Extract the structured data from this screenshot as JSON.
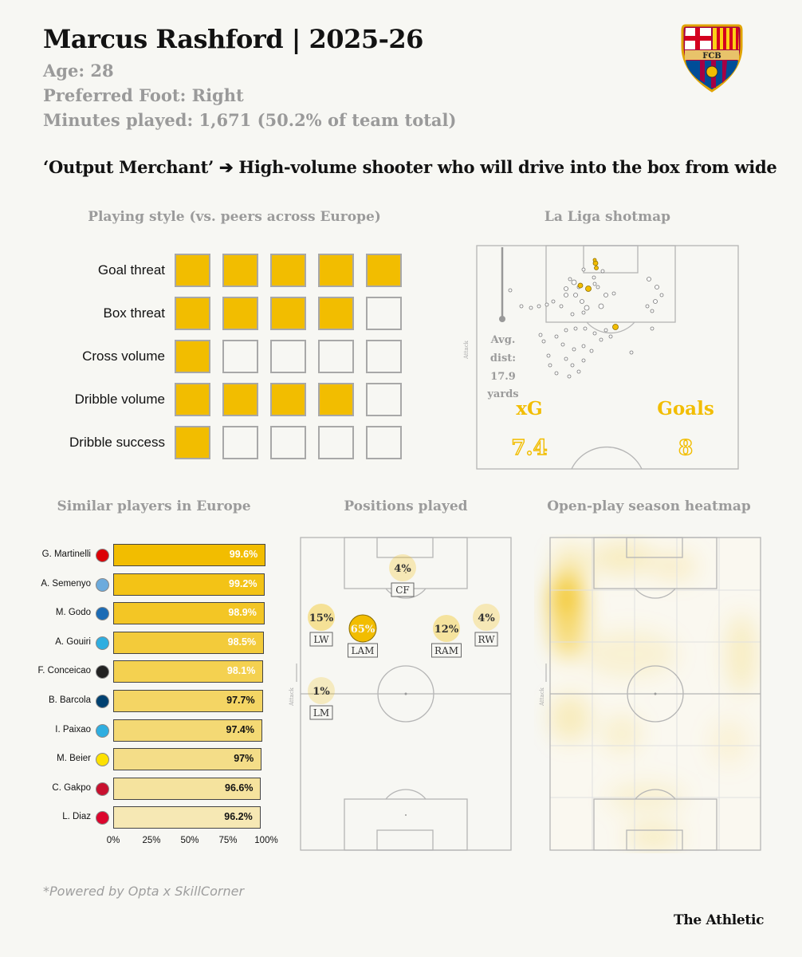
{
  "header": {
    "title": "Marcus Rashford | 2025-26",
    "age": "Age: 28",
    "foot": "Preferred Foot: Right",
    "minutes": "Minutes played: 1,671 (50.2% of team total)",
    "subtitle": "‘Output Merchant’ ➔ High-volume shooter who will drive into the box from wide",
    "badge_text": "FCB",
    "badge_icon": "fc-barcelona-crest-icon"
  },
  "colors": {
    "accent": "#f2bd00",
    "muted": "#9b9b9b",
    "line": "#a8a8a8"
  },
  "chart_data": [
    {
      "type": "table",
      "title": "Playing style (vs. peers across Europe)",
      "rows": [
        {
          "label": "Goal threat",
          "filled": 5,
          "of": 5
        },
        {
          "label": "Box threat",
          "filled": 4,
          "of": 5
        },
        {
          "label": "Cross volume",
          "filled": 1,
          "of": 5
        },
        {
          "label": "Dribble volume",
          "filled": 4,
          "of": 5
        },
        {
          "label": "Dribble success",
          "filled": 1,
          "of": 5
        }
      ]
    },
    {
      "type": "scatter",
      "title": "La Liga shotmap",
      "axis_label": "Attack",
      "avg_label": "Avg. dist: 17.9 yards",
      "avg_lines": [
        "Avg.",
        "dist:",
        "17.9",
        "yards"
      ],
      "xg_label": "xG",
      "xg_value": "7.4",
      "goals_label": "Goals",
      "goals_value": "8"
    },
    {
      "type": "bar",
      "title": "Similar players in Europe",
      "xlim": [
        0,
        100
      ],
      "x_ticks": [
        "0%",
        "25%",
        "50%",
        "75%",
        "100%"
      ],
      "categories": [
        "G. Martinelli",
        "A. Semenyo",
        "M. Godo",
        "A. Gouiri",
        "F. Conceicao",
        "B. Barcola",
        "I. Paixao",
        "M. Beier",
        "C. Gakpo",
        "L. Diaz"
      ],
      "values": [
        99.6,
        99.2,
        98.9,
        98.5,
        98.1,
        97.7,
        97.4,
        97,
        96.6,
        96.2
      ],
      "value_labels": [
        "99.6%",
        "99.2%",
        "98.9%",
        "98.5%",
        "98.1%",
        "97.7%",
        "97.4%",
        "97%",
        "96.6%",
        "96.2%"
      ],
      "club_icons": [
        "arsenal-crest-icon",
        "man-city-crest-icon",
        "strasbourg-crest-icon",
        "marseille-crest-icon",
        "juventus-crest-icon",
        "psg-crest-icon",
        "marseille-crest-icon",
        "dortmund-crest-icon",
        "liverpool-crest-icon",
        "bayern-crest-icon"
      ],
      "club_colors": [
        "#db0007",
        "#6cabdd",
        "#1b6bb5",
        "#2faee0",
        "#222222",
        "#004170",
        "#2faee0",
        "#fde100",
        "#c8102e",
        "#dc052d"
      ]
    },
    {
      "type": "scatter",
      "title": "Positions played",
      "axis_label": "Attack",
      "positions": [
        {
          "label": "CF",
          "pct": "4%",
          "share": 4
        },
        {
          "label": "LW",
          "pct": "15%",
          "share": 15
        },
        {
          "label": "LAM",
          "pct": "65%",
          "share": 65
        },
        {
          "label": "RAM",
          "pct": "12%",
          "share": 12
        },
        {
          "label": "RW",
          "pct": "4%",
          "share": 4
        },
        {
          "label": "LM",
          "pct": "1%",
          "share": 1
        }
      ]
    },
    {
      "type": "heatmap",
      "title": "Open-play season heatmap",
      "axis_label": "Attack"
    }
  ],
  "footer": {
    "note": "*Powered by Opta x SkillCorner",
    "brand": "The Athletic"
  }
}
